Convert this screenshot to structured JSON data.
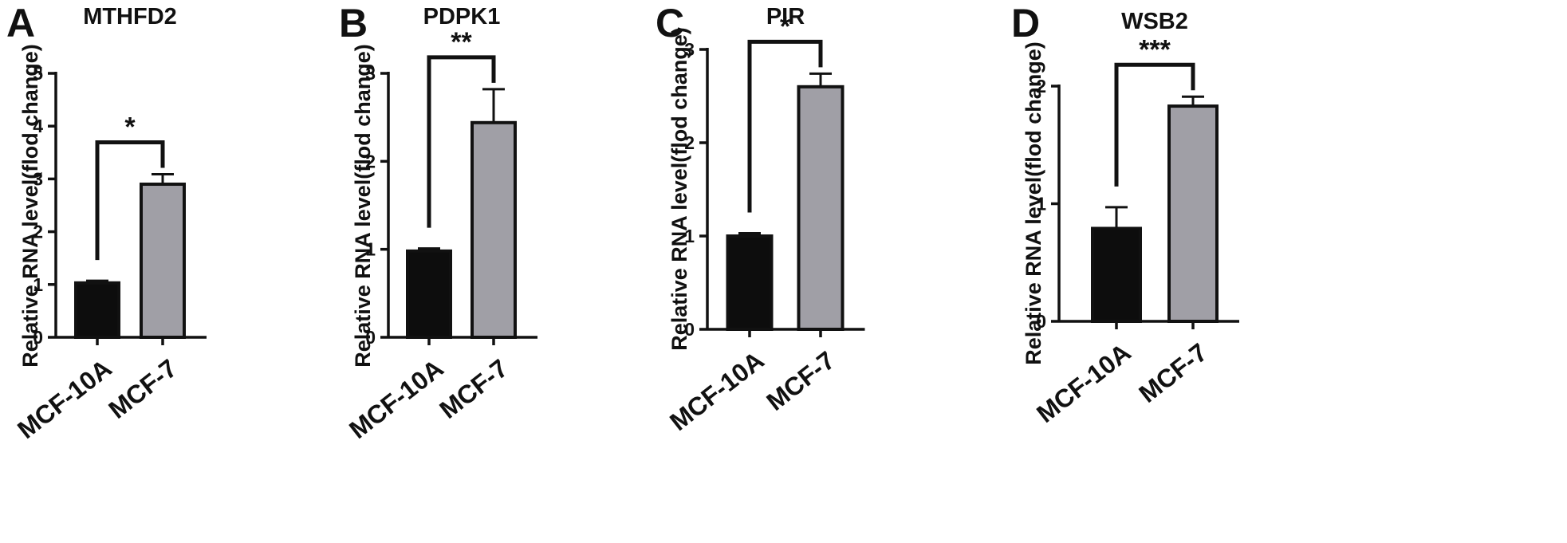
{
  "chart_data": [
    {
      "type": "bar",
      "panel": "A",
      "title": "MTHFD2",
      "ylabel": "Relative RNA level(flod change)",
      "ylim": [
        0,
        5
      ],
      "yticks": [
        0,
        1,
        2,
        3,
        4,
        5
      ],
      "categories": [
        "MCF-10A",
        "MCF-7"
      ],
      "values": [
        1.03,
        2.9
      ],
      "errors": [
        0.04,
        0.19
      ],
      "bar_colors": [
        "#0d0d0d",
        "#a09fa6"
      ],
      "significance": "*"
    },
    {
      "type": "bar",
      "panel": "B",
      "title": "PDPK1",
      "ylabel": "Relative RNA level(flod change)",
      "ylim": [
        0,
        3
      ],
      "yticks": [
        0,
        1,
        2,
        3
      ],
      "categories": [
        "MCF-10A",
        "MCF-7"
      ],
      "values": [
        0.98,
        2.44
      ],
      "errors": [
        0.03,
        0.38
      ],
      "bar_colors": [
        "#0d0d0d",
        "#a09fa6"
      ],
      "significance": "**"
    },
    {
      "type": "bar",
      "panel": "C",
      "title": "PIR",
      "ylabel": "Relative RNA level(flod change)",
      "ylim": [
        0,
        3
      ],
      "yticks": [
        0,
        1,
        2,
        3
      ],
      "categories": [
        "MCF-10A",
        "MCF-7"
      ],
      "values": [
        1.0,
        2.6
      ],
      "errors": [
        0.03,
        0.14
      ],
      "bar_colors": [
        "#0d0d0d",
        "#a09fa6"
      ],
      "significance": "*"
    },
    {
      "type": "bar",
      "panel": "D",
      "title": "WSB2",
      "ylabel": "Relative RNA level(flod change)",
      "ylim": [
        0,
        2
      ],
      "yticks": [
        0,
        1,
        2
      ],
      "categories": [
        "MCF-10A",
        "MCF-7"
      ],
      "values": [
        0.79,
        1.83
      ],
      "errors": [
        0.18,
        0.08
      ],
      "bar_colors": [
        "#0d0d0d",
        "#a09fa6"
      ],
      "significance": "***"
    }
  ]
}
